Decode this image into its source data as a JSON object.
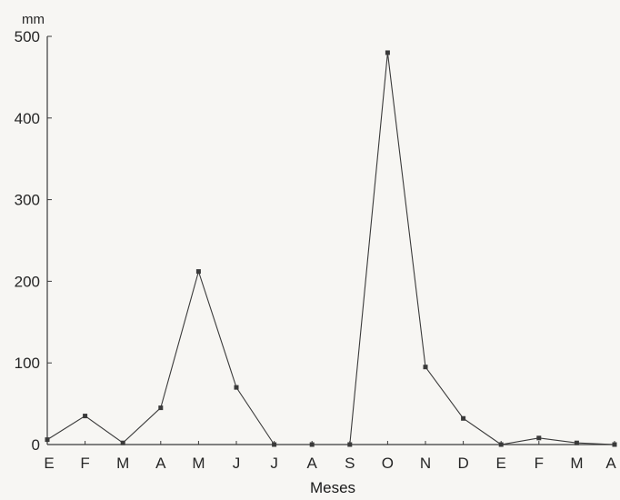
{
  "chart_data": {
    "type": "line",
    "title": "",
    "xlabel": "Meses",
    "ylabel": "",
    "yunit": "mm",
    "ylim": [
      0,
      500
    ],
    "yticks": [
      0,
      100,
      200,
      300,
      400,
      500
    ],
    "grid": false,
    "categories": [
      "E",
      "F",
      "M",
      "A",
      "M",
      "J",
      "J",
      "A",
      "S",
      "O",
      "N",
      "D",
      "E",
      "F",
      "M",
      "A"
    ],
    "series": [
      {
        "values": [
          6,
          35,
          2,
          45,
          212,
          70,
          0,
          0,
          0,
          480,
          95,
          32,
          0,
          8,
          2,
          0
        ]
      }
    ],
    "colors": {
      "line": "#3a3a3a",
      "text": "#262626"
    }
  }
}
